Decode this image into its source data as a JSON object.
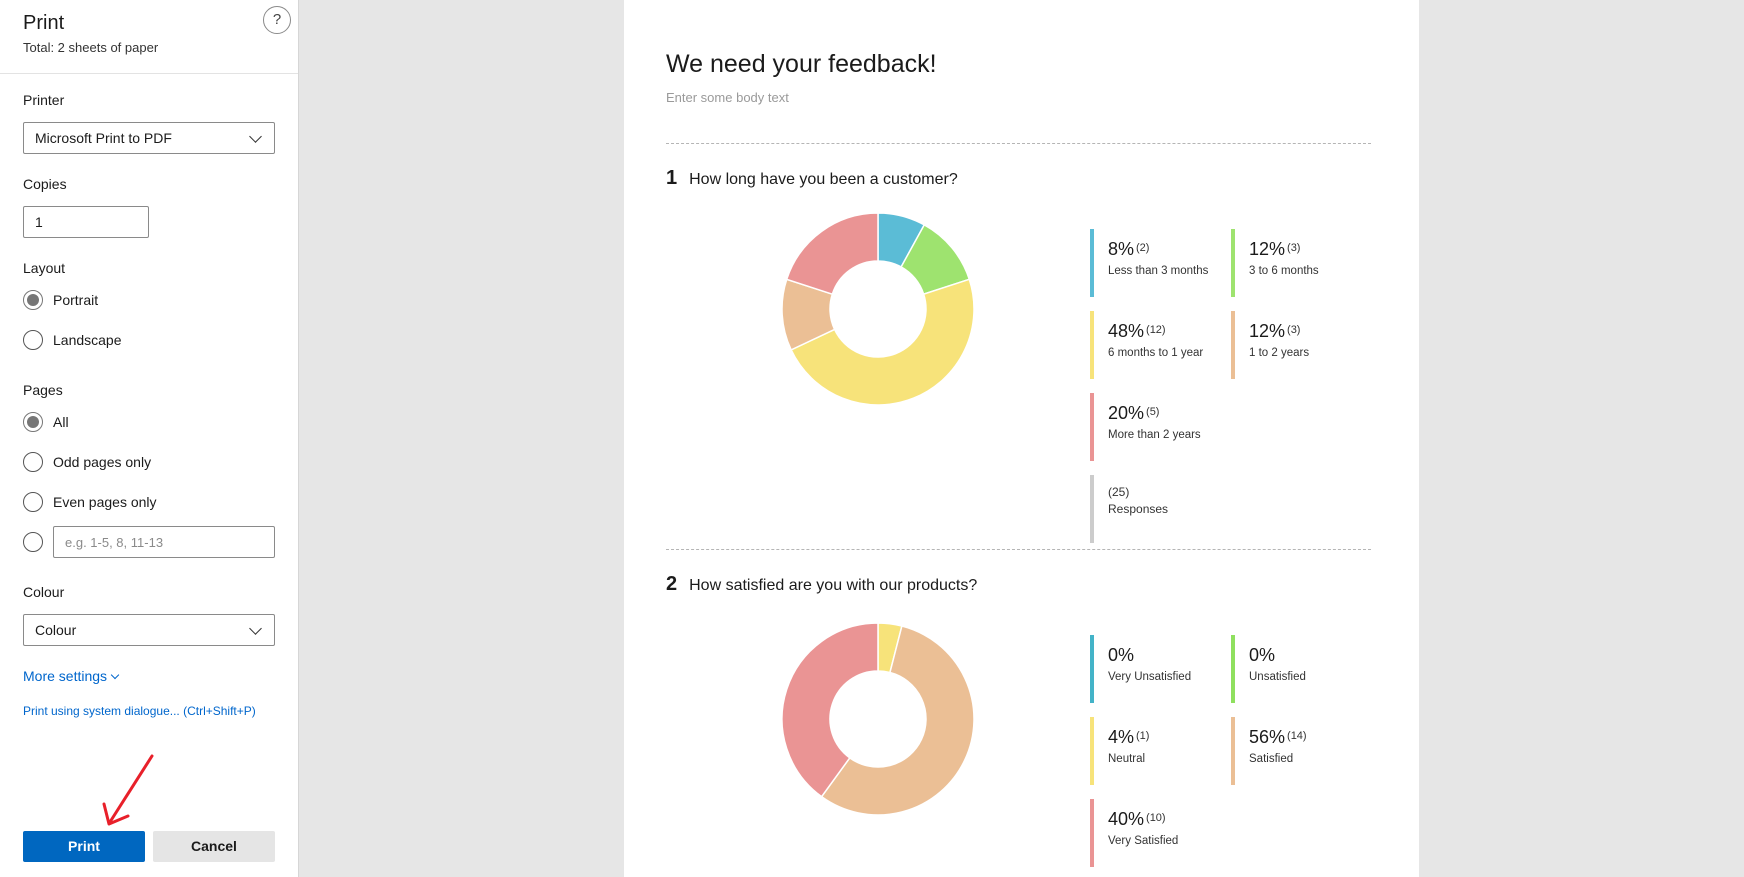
{
  "panel": {
    "title": "Print",
    "subtitle": "Total: 2 sheets of paper",
    "help_label": "?",
    "printer_label": "Printer",
    "printer_value": "Microsoft Print to PDF",
    "copies_label": "Copies",
    "copies_value": "1",
    "layout_label": "Layout",
    "layout_options": [
      {
        "label": "Portrait",
        "checked": true
      },
      {
        "label": "Landscape",
        "checked": false
      }
    ],
    "pages_label": "Pages",
    "pages_options": [
      {
        "label": "All",
        "checked": true
      },
      {
        "label": "Odd pages only",
        "checked": false
      },
      {
        "label": "Even pages only",
        "checked": false
      }
    ],
    "pages_range_placeholder": "e.g. 1-5, 8, 11-13",
    "colour_label": "Colour",
    "colour_value": "Colour",
    "more_settings": "More settings",
    "system_dialog": "Print using system dialogue... (Ctrl+Shift+P)",
    "print_button": "Print",
    "cancel_button": "Cancel",
    "accent_color": "#0067c0",
    "annotation_arrow_color": "#e8202a"
  },
  "document": {
    "title": "We need your feedback!",
    "body": "Enter some body text",
    "questions": [
      {
        "number": "1",
        "text": "How long have you been a customer?",
        "slices": [
          {
            "label": "Less than 3 months",
            "percent": "8%",
            "count": "(2)",
            "value": 2,
            "color": "#5bbcd6"
          },
          {
            "label": "3 to 6 months",
            "percent": "12%",
            "count": "(3)",
            "value": 3,
            "color": "#9ee36f"
          },
          {
            "label": "6 months to 1 year",
            "percent": "48%",
            "count": "(12)",
            "value": 12,
            "color": "#f7e37a"
          },
          {
            "label": "1 to 2 years",
            "percent": "12%",
            "count": "(3)",
            "value": 3,
            "color": "#ebbf95"
          },
          {
            "label": "More than 2 years",
            "percent": "20%",
            "count": "(5)",
            "value": 5,
            "color": "#ea9494"
          }
        ],
        "responses": {
          "count": "(25)",
          "label": "Responses",
          "color": "#cccccc"
        }
      },
      {
        "number": "2",
        "text": "How satisfied are you with our products?",
        "slices": [
          {
            "label": "Very Unsatisfied",
            "percent": "0%",
            "count": "",
            "value": 0,
            "color": "#43b3c8"
          },
          {
            "label": "Unsatisfied",
            "percent": "0%",
            "count": "",
            "value": 0,
            "color": "#8fe05f"
          },
          {
            "label": "Neutral",
            "percent": "4%",
            "count": "(1)",
            "value": 1,
            "color": "#f7e37a"
          },
          {
            "label": "Satisfied",
            "percent": "56%",
            "count": "(14)",
            "value": 14,
            "color": "#ebbf95"
          },
          {
            "label": "Very Satisfied",
            "percent": "40%",
            "count": "(10)",
            "value": 10,
            "color": "#ea9494"
          }
        ]
      }
    ]
  },
  "chart_data": [
    {
      "type": "pie",
      "title": "How long have you been a customer?",
      "categories": [
        "Less than 3 months",
        "3 to 6 months",
        "6 months to 1 year",
        "1 to 2 years",
        "More than 2 years"
      ],
      "values": [
        2,
        3,
        12,
        3,
        5
      ]
    },
    {
      "type": "pie",
      "title": "How satisfied are you with our products?",
      "categories": [
        "Very Unsatisfied",
        "Unsatisfied",
        "Neutral",
        "Satisfied",
        "Very Satisfied"
      ],
      "values": [
        0,
        0,
        1,
        14,
        10
      ]
    }
  ]
}
